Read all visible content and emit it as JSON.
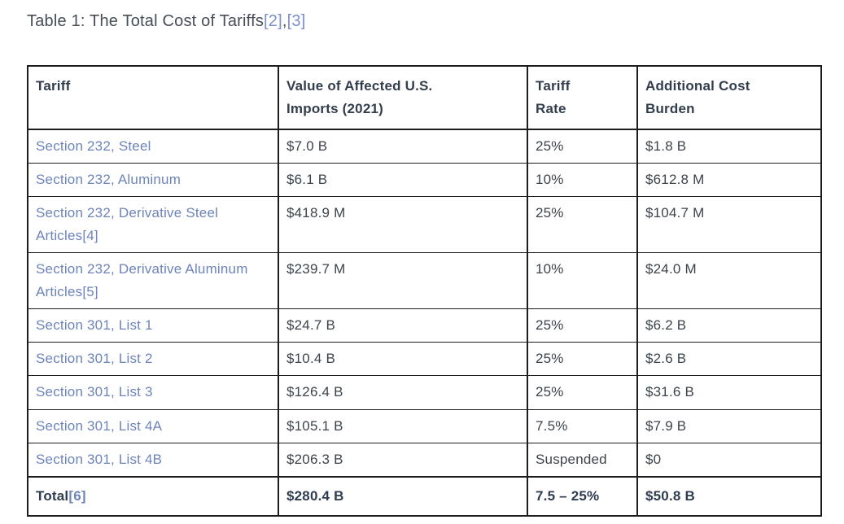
{
  "title": {
    "text": "Table 1: The Total Cost of Tariffs",
    "footnotes": [
      "[2]",
      "[3]"
    ],
    "separator": ","
  },
  "table": {
    "columns": [
      {
        "label": "Tariff",
        "lines": [
          "Tariff"
        ]
      },
      {
        "label": "Value of Affected U.S. Imports (2021)",
        "lines": [
          "Value of Affected U.S.",
          "Imports (2021)"
        ]
      },
      {
        "label": "Tariff Rate",
        "lines": [
          "Tariff",
          "Rate"
        ]
      },
      {
        "label": "Additional Cost Burden",
        "lines": [
          "Additional Cost",
          "Burden"
        ]
      }
    ],
    "rows": [
      {
        "tariff": "Section 232, Steel",
        "value": "$7.0 B",
        "rate": "25%",
        "burden": "$1.8 B"
      },
      {
        "tariff": "Section 232, Aluminum",
        "value": "$6.1 B",
        "rate": "10%",
        "burden": "$612.8 M"
      },
      {
        "tariff": "Section 232, Derivative Steel Articles[4]",
        "value": "$418.9 M",
        "rate": "25%",
        "burden": "$104.7 M"
      },
      {
        "tariff": "Section 232, Derivative Aluminum Articles[5]",
        "value": "$239.7 M",
        "rate": "10%",
        "burden": "$24.0 M"
      },
      {
        "tariff": "Section 301, List 1",
        "value": "$24.7 B",
        "rate": "25%",
        "burden": "$6.2 B"
      },
      {
        "tariff": "Section 301, List 2",
        "value": "$10.4 B",
        "rate": "25%",
        "burden": "$2.6 B"
      },
      {
        "tariff": "Section 301, List 3",
        "value": "$126.4 B",
        "rate": "25%",
        "burden": "$31.6 B"
      },
      {
        "tariff": "Section 301, List 4A",
        "value": "$105.1 B",
        "rate": "7.5%",
        "burden": "$7.9 B"
      },
      {
        "tariff": "Section 301, List 4B",
        "value": "$206.3 B",
        "rate": "Suspended",
        "burden": "$0"
      }
    ],
    "total_row": {
      "label": "Total",
      "footnote": "[6]",
      "value": "$280.4 B",
      "rate": "7.5 – 25%",
      "burden": "$50.8 B"
    }
  },
  "colors": {
    "link_blue": "#6d84bb",
    "title_footnote_blue": "#7b8fc9",
    "text_dark": "#3c434b",
    "header_dark": "#333e4d",
    "border": "#1d1d1d"
  },
  "chart_data": {
    "type": "table",
    "title": "Table 1: The Total Cost of Tariffs[2],[3]",
    "columns": [
      "Tariff",
      "Value of Affected U.S. Imports (2021)",
      "Tariff Rate",
      "Additional Cost Burden"
    ],
    "rows": [
      [
        "Section 232, Steel",
        "$7.0 B",
        "25%",
        "$1.8 B"
      ],
      [
        "Section 232, Aluminum",
        "$6.1 B",
        "10%",
        "$612.8 M"
      ],
      [
        "Section 232, Derivative Steel Articles[4]",
        "$418.9 M",
        "25%",
        "$104.7 M"
      ],
      [
        "Section 232, Derivative Aluminum Articles[5]",
        "$239.7 M",
        "10%",
        "$24.0 M"
      ],
      [
        "Section 301, List 1",
        "$24.7 B",
        "25%",
        "$6.2 B"
      ],
      [
        "Section 301, List 2",
        "$10.4 B",
        "25%",
        "$2.6 B"
      ],
      [
        "Section 301, List 3",
        "$126.4 B",
        "25%",
        "$31.6 B"
      ],
      [
        "Section 301, List 4A",
        "$105.1 B",
        "7.5%",
        "$7.9 B"
      ],
      [
        "Section 301, List 4B",
        "$206.3 B",
        "Suspended",
        "$0"
      ],
      [
        "Total[6]",
        "$280.4 B",
        "7.5 – 25%",
        "$50.8 B"
      ]
    ]
  }
}
